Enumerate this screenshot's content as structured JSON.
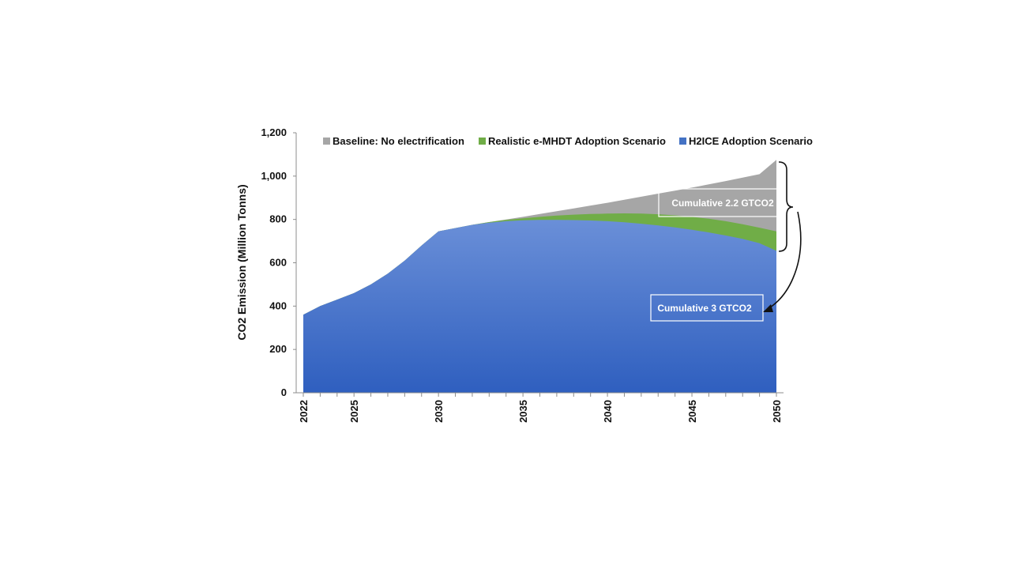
{
  "chart_data": {
    "type": "area",
    "title": "",
    "xlabel": "",
    "ylabel": "CO2 Emission (Million Tonns)",
    "xlim": [
      2022,
      2050
    ],
    "ylim": [
      0,
      1200
    ],
    "x_ticks": [
      "2022",
      "2025",
      "2030",
      "2035",
      "2040",
      "2045",
      "2050"
    ],
    "y_ticks": [
      "0",
      "200",
      "400",
      "600",
      "800",
      "1,000",
      "1,200"
    ],
    "grid": false,
    "legend_position": "top",
    "series": [
      {
        "name": "Baseline: No electrification",
        "color": "#a6a6a6",
        "x": [
          2022,
          2023,
          2024,
          2025,
          2026,
          2027,
          2028,
          2029,
          2030,
          2031,
          2032,
          2033,
          2034,
          2035,
          2036,
          2037,
          2038,
          2039,
          2040,
          2041,
          2042,
          2043,
          2044,
          2045,
          2046,
          2047,
          2048,
          2049,
          2050
        ],
        "values": [
          360,
          400,
          430,
          460,
          500,
          550,
          610,
          680,
          745,
          760,
          775,
          788,
          800,
          812,
          825,
          838,
          851,
          864,
          877,
          891,
          905,
          919,
          933,
          947,
          962,
          977,
          993,
          1009,
          1075
        ]
      },
      {
        "name": "Realistic e-MHDT Adoption Scenario",
        "color": "#70ad47",
        "x": [
          2022,
          2023,
          2024,
          2025,
          2026,
          2027,
          2028,
          2029,
          2030,
          2031,
          2032,
          2033,
          2034,
          2035,
          2036,
          2037,
          2038,
          2039,
          2040,
          2041,
          2042,
          2043,
          2044,
          2045,
          2046,
          2047,
          2048,
          2049,
          2050
        ],
        "values": [
          360,
          400,
          430,
          460,
          500,
          550,
          610,
          680,
          745,
          760,
          775,
          788,
          798,
          805,
          812,
          818,
          822,
          825,
          827,
          828,
          827,
          824,
          819,
          812,
          803,
          792,
          778,
          762,
          745
        ]
      },
      {
        "name": "H2ICE Adoption Scenario",
        "color": "#4472c4",
        "x": [
          2022,
          2023,
          2024,
          2025,
          2026,
          2027,
          2028,
          2029,
          2030,
          2031,
          2032,
          2033,
          2034,
          2035,
          2036,
          2037,
          2038,
          2039,
          2040,
          2041,
          2042,
          2043,
          2044,
          2045,
          2046,
          2047,
          2048,
          2049,
          2050
        ],
        "values": [
          360,
          400,
          430,
          460,
          500,
          550,
          610,
          680,
          745,
          760,
          775,
          785,
          792,
          796,
          798,
          798,
          797,
          795,
          792,
          787,
          780,
          772,
          763,
          752,
          740,
          726,
          710,
          690,
          655
        ]
      }
    ],
    "annotations": [
      {
        "text": "Cumulative 2.2 GTCO2"
      },
      {
        "text": "Cumulative 3 GTCO2"
      }
    ]
  }
}
